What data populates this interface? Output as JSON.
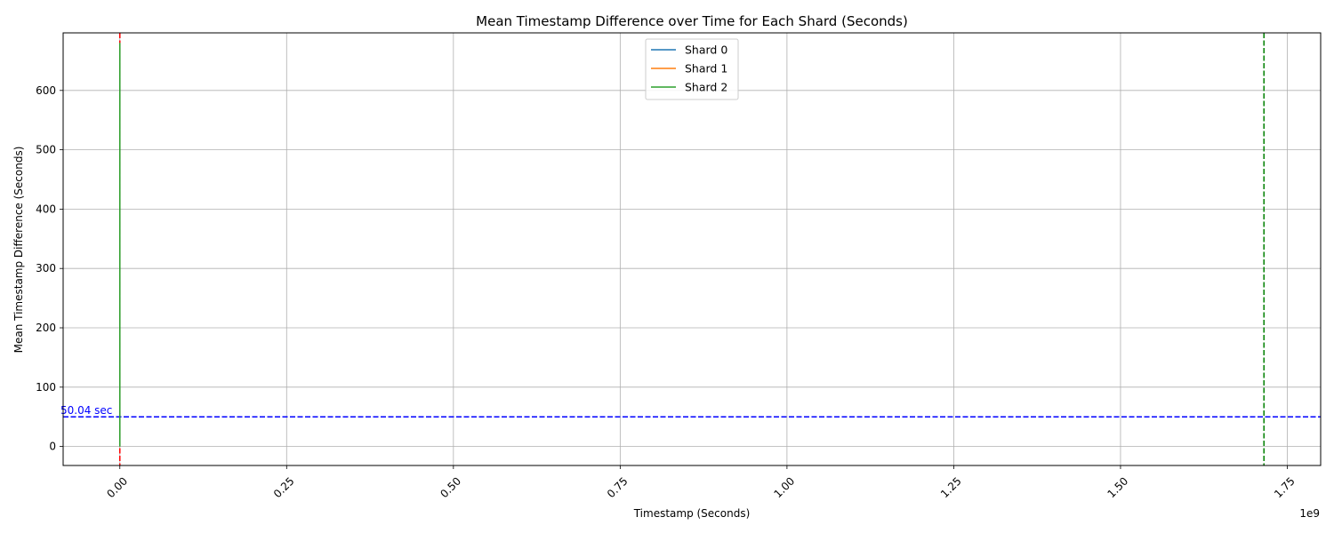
{
  "chart_data": {
    "type": "line",
    "title": "Mean Timestamp Difference over Time for Each Shard (Seconds)",
    "xlabel": "Timestamp (Seconds)",
    "ylabel": "Mean Timestamp Difference (Seconds)",
    "x_offset_label": "1e9",
    "xlim": [
      -0.085,
      1.8
    ],
    "ylim": [
      -32,
      697
    ],
    "x_ticks": [
      0.0,
      0.25,
      0.5,
      0.75,
      1.0,
      1.25,
      1.5,
      1.75
    ],
    "x_tick_labels": [
      "0.00",
      "0.25",
      "0.50",
      "0.75",
      "1.00",
      "1.25",
      "1.50",
      "1.75"
    ],
    "y_ticks": [
      0,
      100,
      200,
      300,
      400,
      500,
      600
    ],
    "y_tick_labels": [
      "0",
      "100",
      "200",
      "300",
      "400",
      "500",
      "600"
    ],
    "grid": true,
    "legend_position": "top-center",
    "series": [
      {
        "name": "Shard 0",
        "color": "#1f77b4",
        "x": [
          0.0,
          0.0
        ],
        "y": [
          0,
          680
        ]
      },
      {
        "name": "Shard 1",
        "color": "#ff7f0e",
        "x": [
          0.0,
          0.0
        ],
        "y": [
          0,
          680
        ]
      },
      {
        "name": "Shard 2",
        "color": "#2ca02c",
        "x": [
          0.0,
          0.0
        ],
        "y": [
          0,
          680
        ]
      }
    ],
    "reference_lines": [
      {
        "orientation": "vertical",
        "x": 0.0,
        "color": "#ff0000",
        "style": "dashed"
      },
      {
        "orientation": "vertical",
        "x": 1.715,
        "color": "#008000",
        "style": "dashed"
      },
      {
        "orientation": "horizontal",
        "y": 50.04,
        "color": "#0000ff",
        "style": "dashed",
        "label": "50.04 sec"
      }
    ]
  }
}
